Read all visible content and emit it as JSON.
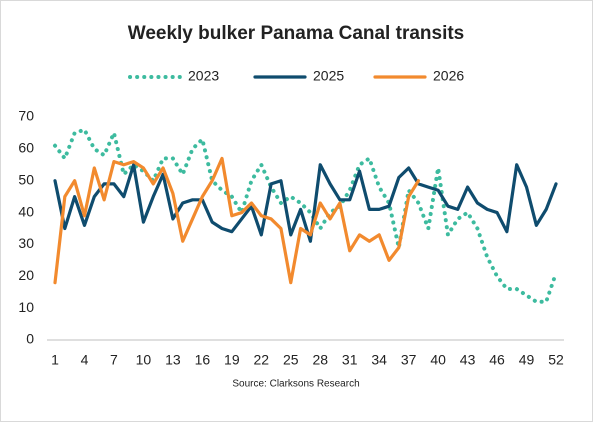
{
  "chart_data": {
    "type": "line",
    "title": "Weekly bulker Panama Canal transits",
    "source": "Source: Clarksons Research",
    "x": [
      1,
      2,
      3,
      4,
      5,
      6,
      7,
      8,
      9,
      10,
      11,
      12,
      13,
      14,
      15,
      16,
      17,
      18,
      19,
      20,
      21,
      22,
      23,
      24,
      25,
      26,
      27,
      28,
      29,
      30,
      31,
      32,
      33,
      34,
      35,
      36,
      37,
      38,
      39,
      40,
      41,
      42,
      43,
      44,
      45,
      46,
      47,
      48,
      49,
      50,
      51,
      52
    ],
    "xlim": [
      1,
      52
    ],
    "xticks": [
      1,
      4,
      7,
      10,
      13,
      16,
      19,
      22,
      25,
      28,
      31,
      34,
      37,
      40,
      43,
      46,
      49,
      52
    ],
    "ylim": [
      0,
      70
    ],
    "yticks": [
      0,
      10,
      20,
      30,
      40,
      50,
      60,
      70
    ],
    "grid": false,
    "legend": "top",
    "series": [
      {
        "name": "2023",
        "color": "#3dbb9f",
        "dash": "dotted",
        "values": [
          61,
          57,
          65,
          66,
          60,
          58,
          65,
          52,
          55,
          53,
          50,
          57,
          57,
          52,
          60,
          63,
          50,
          47,
          45,
          40,
          50,
          55,
          48,
          43,
          45,
          43,
          40,
          35,
          40,
          42,
          47,
          55,
          57,
          48,
          43,
          29,
          47,
          43,
          35,
          54,
          33,
          38,
          40,
          35,
          26,
          20,
          16,
          16,
          14,
          12,
          12,
          21
        ]
      },
      {
        "name": "2025",
        "color": "#0f4c6e",
        "dash": "solid",
        "values": [
          50,
          35,
          45,
          36,
          45,
          49,
          49,
          45,
          55,
          37,
          45,
          52,
          38,
          43,
          44,
          44,
          37,
          35,
          34,
          38,
          42,
          33,
          49,
          50,
          33,
          41,
          31,
          55,
          49,
          44,
          44,
          53,
          41,
          41,
          42,
          51,
          54,
          49,
          48,
          47,
          42,
          41,
          48,
          43,
          41,
          40,
          34,
          55,
          48,
          36,
          41,
          49
        ]
      },
      {
        "name": "2026",
        "color": "#f28a2e",
        "dash": "solid",
        "values": [
          18,
          45,
          50,
          39,
          54,
          44,
          56,
          55,
          56,
          54,
          49,
          54,
          46,
          31,
          38,
          45,
          50,
          57,
          39,
          40,
          43,
          39,
          38,
          35,
          18,
          35,
          33,
          43,
          38,
          43,
          28,
          33,
          31,
          33,
          25,
          29,
          45,
          50,
          null,
          null,
          null,
          null,
          null,
          null,
          null,
          null,
          null,
          null,
          null,
          null,
          null,
          null
        ]
      }
    ]
  }
}
